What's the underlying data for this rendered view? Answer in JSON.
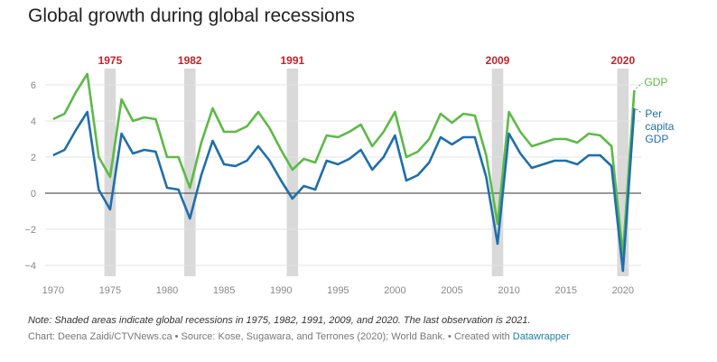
{
  "header": {
    "title": "Global growth during global recessions"
  },
  "footer": {
    "note": "Note: Shaded areas indicate global recessions in 1975, 1982, 1991, 2009, and 2020. The last observation is 2021.",
    "source_prefix": "Chart: Deena Zaidi/CTVNews.ca • Source: Kose, Sugawara, and Terrones (2020); World Bank. • Created with ",
    "source_link": "Datawrapper"
  },
  "chart_data": {
    "type": "line",
    "x": [
      1970,
      1971,
      1972,
      1973,
      1974,
      1975,
      1976,
      1977,
      1978,
      1979,
      1980,
      1981,
      1982,
      1983,
      1984,
      1985,
      1986,
      1987,
      1988,
      1989,
      1990,
      1991,
      1992,
      1993,
      1994,
      1995,
      1996,
      1997,
      1998,
      1999,
      2000,
      2001,
      2002,
      2003,
      2004,
      2005,
      2006,
      2007,
      2008,
      2009,
      2010,
      2011,
      2012,
      2013,
      2014,
      2015,
      2016,
      2017,
      2018,
      2019,
      2020,
      2021
    ],
    "series": [
      {
        "name": "GDP",
        "color": "#5cba47",
        "values": [
          4.1,
          4.4,
          5.6,
          6.6,
          2.0,
          0.9,
          5.2,
          4.0,
          4.2,
          4.1,
          2.0,
          2.0,
          0.3,
          2.8,
          4.7,
          3.4,
          3.4,
          3.7,
          4.5,
          3.6,
          2.4,
          1.3,
          1.9,
          1.7,
          3.2,
          3.1,
          3.4,
          3.8,
          2.6,
          3.4,
          4.5,
          2.0,
          2.3,
          3.0,
          4.4,
          3.9,
          4.4,
          4.3,
          2.1,
          -1.7,
          4.5,
          3.4,
          2.6,
          2.8,
          3.0,
          3.0,
          2.8,
          3.3,
          3.2,
          2.6,
          -3.4,
          5.7
        ]
      },
      {
        "name": "Per capita GDP",
        "label_lines": [
          "Per",
          "capita",
          "GDP"
        ],
        "color": "#1f6fab",
        "values": [
          2.1,
          2.4,
          3.5,
          4.5,
          0.2,
          -0.9,
          3.3,
          2.2,
          2.4,
          2.3,
          0.3,
          0.2,
          -1.4,
          1.0,
          2.9,
          1.6,
          1.5,
          1.8,
          2.6,
          1.8,
          0.7,
          -0.3,
          0.4,
          0.2,
          1.8,
          1.6,
          1.9,
          2.4,
          1.3,
          2.0,
          3.2,
          0.7,
          1.0,
          1.7,
          3.1,
          2.7,
          3.1,
          3.1,
          0.9,
          -2.8,
          3.3,
          2.2,
          1.4,
          1.6,
          1.8,
          1.8,
          1.6,
          2.1,
          2.1,
          1.5,
          -4.3,
          4.7
        ]
      }
    ],
    "recessions": [
      {
        "label": "1975",
        "year": 1975
      },
      {
        "label": "1982",
        "year": 1982
      },
      {
        "label": "1991",
        "year": 1991
      },
      {
        "label": "2009",
        "year": 2009
      },
      {
        "label": "2020",
        "year": 2020
      }
    ],
    "recession_label_color": "#c0232b",
    "xlim": [
      1969.3,
      2021.6
    ],
    "ylim": [
      -4.6,
      6.9
    ],
    "x_ticks": [
      "1970",
      "1975",
      "1980",
      "1985",
      "1990",
      "1995",
      "2000",
      "2005",
      "2010",
      "2015",
      "2020"
    ],
    "y_ticks": [
      "6",
      "4",
      "2",
      "0",
      "−2",
      "−4"
    ],
    "y_tick_values": [
      6,
      4,
      2,
      0,
      -2,
      -4
    ],
    "x_tick_values": [
      1970,
      1975,
      1980,
      1985,
      1990,
      1995,
      2000,
      2005,
      2010,
      2015,
      2020
    ],
    "grid": "horizontal"
  }
}
